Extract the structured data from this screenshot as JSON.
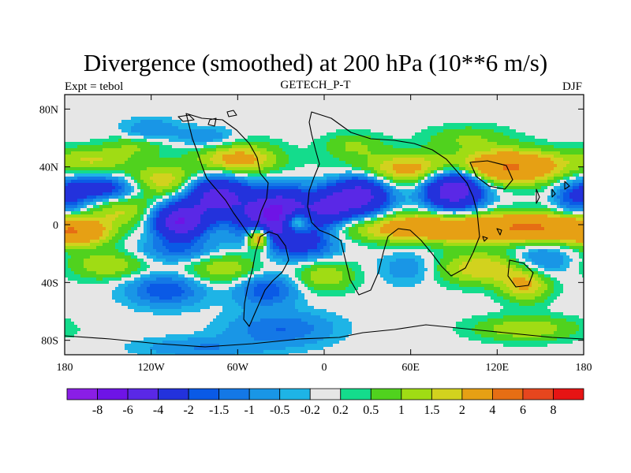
{
  "header": {
    "title": "Divergence (smoothed) at 200 hPa (10**6 m/s)",
    "left": "Expt = tebol",
    "center": "GETECH_P-T",
    "right": "DJF"
  },
  "chart_data": {
    "type": "heatmap",
    "title": "Divergence (smoothed) at 200 hPa (10**6 m/s)",
    "xlabel": "",
    "ylabel": "",
    "xlim": [
      -180,
      180
    ],
    "ylim": [
      -90,
      90
    ],
    "x_ticks": [
      {
        "value": -180,
        "label": "180"
      },
      {
        "value": -120,
        "label": "120W"
      },
      {
        "value": -60,
        "label": "60W"
      },
      {
        "value": 0,
        "label": "0"
      },
      {
        "value": 60,
        "label": "60E"
      },
      {
        "value": 120,
        "label": "120E"
      },
      {
        "value": 180,
        "label": "180"
      }
    ],
    "y_ticks": [
      {
        "value": 80,
        "label": "80N"
      },
      {
        "value": 40,
        "label": "40N"
      },
      {
        "value": 0,
        "label": "0"
      },
      {
        "value": -40,
        "label": "40S"
      },
      {
        "value": -80,
        "label": "80S"
      }
    ],
    "colorbar": {
      "levels": [
        "-8",
        "-6",
        "-4",
        "-2",
        "-1.5",
        "-1",
        "-0.5",
        "-0.2",
        "0.2",
        "0.5",
        "1",
        "1.5",
        "2",
        "4",
        "6",
        "8"
      ],
      "colors": [
        "#8a1ee6",
        "#6e14e6",
        "#5a28e6",
        "#2332dc",
        "#0a5ae6",
        "#1478e6",
        "#1996e6",
        "#1eb4e6",
        "#e6e6e6",
        "#14dc8c",
        "#50d21e",
        "#a0dc14",
        "#d2d21e",
        "#e6a014",
        "#e66e14",
        "#e6461e",
        "#e61414"
      ]
    },
    "field_features": [
      {
        "lon": -30,
        "lat": 5,
        "value": -8.0,
        "slon": 18,
        "slat": 12
      },
      {
        "lon": 25,
        "lat": 20,
        "value": -5.0,
        "slon": 14,
        "slat": 10
      },
      {
        "lon": 5,
        "lat": 12,
        "value": -3.0,
        "slon": 10,
        "slat": 8
      },
      {
        "lon": 90,
        "lat": 25,
        "value": -6.0,
        "slon": 14,
        "slat": 10
      },
      {
        "lon": -75,
        "lat": 20,
        "value": -5.0,
        "slon": 15,
        "slat": 10
      },
      {
        "lon": -100,
        "lat": 2,
        "value": -6.0,
        "slon": 12,
        "slat": 8
      },
      {
        "lon": -155,
        "lat": 25,
        "value": -3.0,
        "slon": 18,
        "slat": 6
      },
      {
        "lon": -120,
        "lat": 65,
        "value": -1.0,
        "slon": 14,
        "slat": 6
      },
      {
        "lon": -80,
        "lat": 60,
        "value": -1.0,
        "slon": 14,
        "slat": 5
      },
      {
        "lon": -110,
        "lat": -45,
        "value": -2.0,
        "slon": 18,
        "slat": 8
      },
      {
        "lon": -40,
        "lat": -45,
        "value": -2.0,
        "slon": 15,
        "slat": 8
      },
      {
        "lon": -30,
        "lat": -72,
        "value": -1.5,
        "slon": 25,
        "slat": 8
      },
      {
        "lon": -85,
        "lat": -85,
        "value": -1.0,
        "slon": 30,
        "slat": 5
      },
      {
        "lon": 150,
        "lat": -25,
        "value": -1.5,
        "slon": 15,
        "slat": 8
      },
      {
        "lon": 170,
        "lat": 18,
        "value": -1.5,
        "slon": 8,
        "slat": 8
      },
      {
        "lon": -175,
        "lat": 18,
        "value": -1.5,
        "slon": 8,
        "slat": 8
      },
      {
        "lon": 60,
        "lat": -30,
        "value": -1.0,
        "slon": 15,
        "slat": 8
      },
      {
        "lon": -10,
        "lat": -15,
        "value": -1.5,
        "slon": 15,
        "slat": 8
      },
      {
        "lon": -100,
        "lat": -18,
        "value": -1.5,
        "slon": 20,
        "slat": 6
      },
      {
        "lon": -20,
        "lat": 2,
        "value": 6.0,
        "slon": 8,
        "slat": 6
      },
      {
        "lon": -45,
        "lat": -8,
        "value": 5.0,
        "slon": 6,
        "slat": 6
      },
      {
        "lon": 80,
        "lat": -2,
        "value": 3.5,
        "slon": 45,
        "slat": 7
      },
      {
        "lon": 150,
        "lat": -2,
        "value": 3.0,
        "slon": 25,
        "slat": 7
      },
      {
        "lon": -170,
        "lat": -5,
        "value": 3.0,
        "slon": 15,
        "slat": 7
      },
      {
        "lon": 60,
        "lat": 38,
        "value": 2.5,
        "slon": 30,
        "slat": 8
      },
      {
        "lon": 130,
        "lat": 40,
        "value": 4.0,
        "slon": 25,
        "slat": 8
      },
      {
        "lon": -110,
        "lat": 30,
        "value": 2.0,
        "slon": 20,
        "slat": 8
      },
      {
        "lon": -140,
        "lat": 10,
        "value": 1.5,
        "slon": 15,
        "slat": 8
      },
      {
        "lon": -60,
        "lat": 45,
        "value": 2.5,
        "slon": 20,
        "slat": 8
      },
      {
        "lon": 110,
        "lat": -30,
        "value": 2.0,
        "slon": 25,
        "slat": 8
      },
      {
        "lon": 140,
        "lat": -42,
        "value": 2.0,
        "slon": 12,
        "slat": 8
      },
      {
        "lon": -70,
        "lat": -30,
        "value": 1.5,
        "slon": 20,
        "slat": 8
      },
      {
        "lon": 0,
        "lat": -35,
        "value": 1.5,
        "slon": 15,
        "slat": 8
      },
      {
        "lon": -150,
        "lat": -28,
        "value": 1.5,
        "slon": 20,
        "slat": 7
      },
      {
        "lon": 100,
        "lat": 60,
        "value": 1.0,
        "slon": 20,
        "slat": 6
      },
      {
        "lon": 140,
        "lat": -72,
        "value": 1.5,
        "slon": 25,
        "slat": 6
      },
      {
        "lon": -160,
        "lat": 45,
        "value": 1.5,
        "slon": 20,
        "slat": 6
      },
      {
        "lon": -130,
        "lat": 55,
        "value": 1.0,
        "slon": 15,
        "slat": 5
      },
      {
        "lon": 20,
        "lat": 55,
        "value": 1.0,
        "slon": 15,
        "slat": 6
      }
    ]
  }
}
